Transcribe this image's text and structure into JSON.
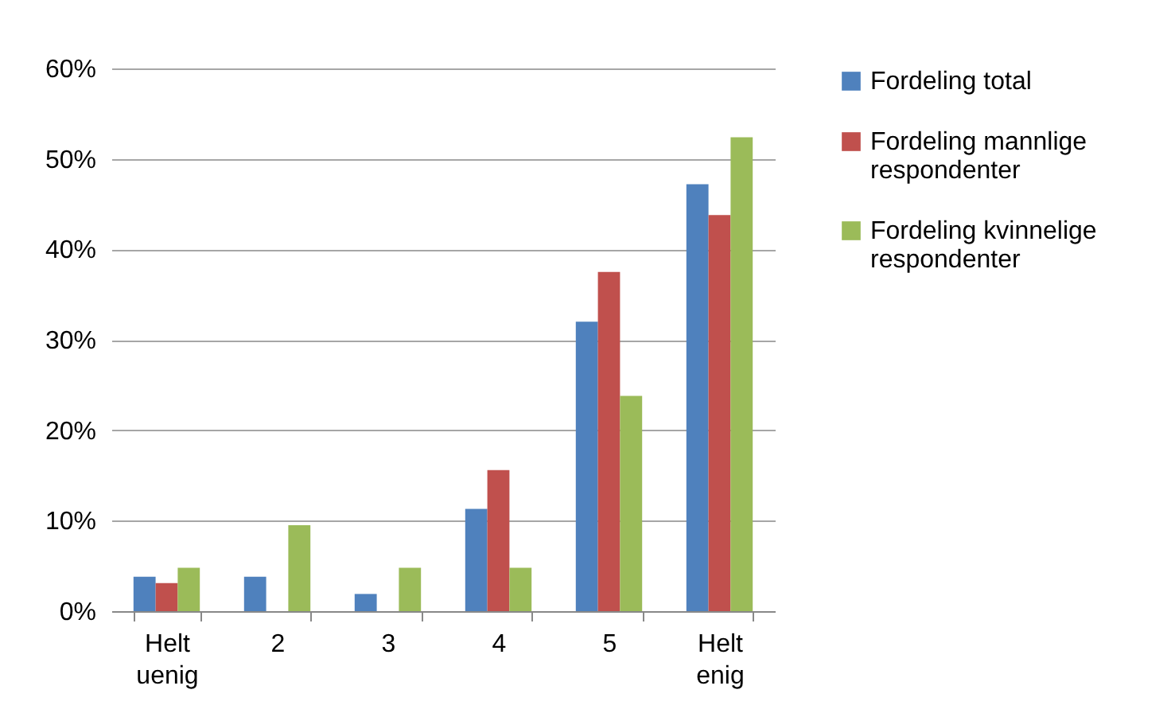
{
  "chart_data": {
    "type": "bar",
    "categories": [
      "Helt uenig",
      "2",
      "3",
      "4",
      "5",
      "Helt enig"
    ],
    "series": [
      {
        "name": "Fordeling total",
        "color": "#4f81bd",
        "values": [
          3.8,
          3.8,
          1.9,
          11.3,
          32,
          47.2
        ]
      },
      {
        "name": "Fordeling mannlige respondenter",
        "color": "#c0504d",
        "values": [
          3.1,
          0,
          0,
          15.6,
          37.5,
          43.8
        ]
      },
      {
        "name": "Fordeling kvinnelige respondenter",
        "color": "#9bbb59",
        "values": [
          4.8,
          9.5,
          4.8,
          4.8,
          23.8,
          52.4
        ]
      }
    ],
    "ylim": [
      0,
      60
    ],
    "yticks": [
      {
        "value": 0,
        "label": "0%"
      },
      {
        "value": 10,
        "label": "10%"
      },
      {
        "value": 20,
        "label": "20%"
      },
      {
        "value": 30,
        "label": "30%"
      },
      {
        "value": 40,
        "label": "40%"
      },
      {
        "value": 50,
        "label": "50%"
      },
      {
        "value": 60,
        "label": "60%"
      }
    ],
    "grid": "y",
    "legend": "right"
  }
}
